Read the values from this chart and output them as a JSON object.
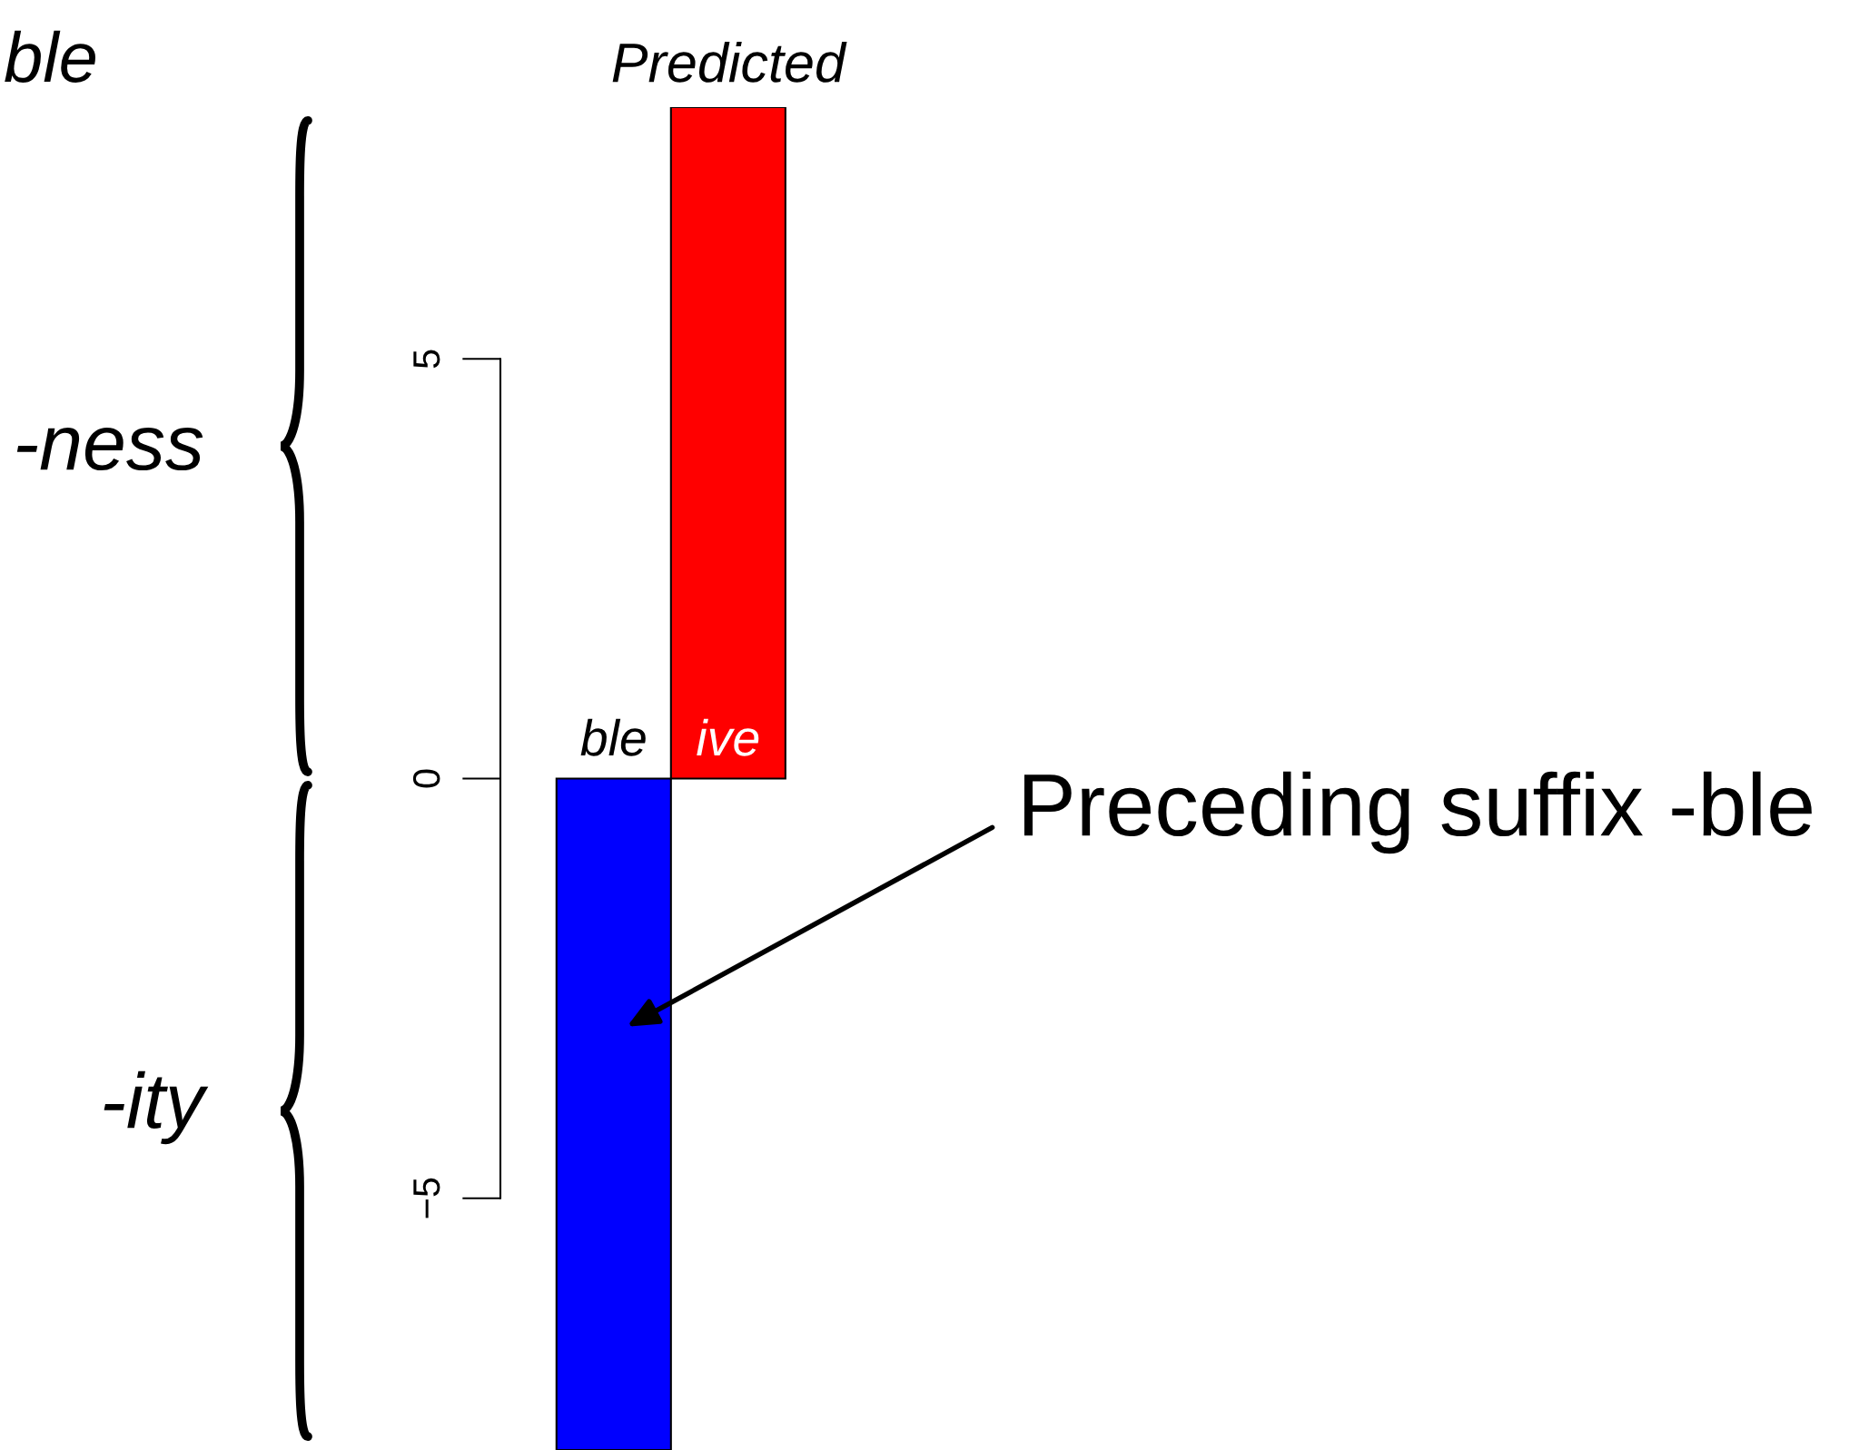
{
  "chart_data": {
    "type": "bar",
    "title": "Predicted",
    "categories": [
      "ble",
      "ive"
    ],
    "colors": [
      "#0000ff",
      "#ff0000"
    ],
    "values": [
      -8,
      8
    ],
    "ylim": [
      -8,
      8
    ],
    "yticks": [
      -5,
      0,
      5
    ],
    "grid": false,
    "annotations": [
      "-ness",
      "-ity",
      "Preceding suffix -ble",
      "ble"
    ]
  }
}
